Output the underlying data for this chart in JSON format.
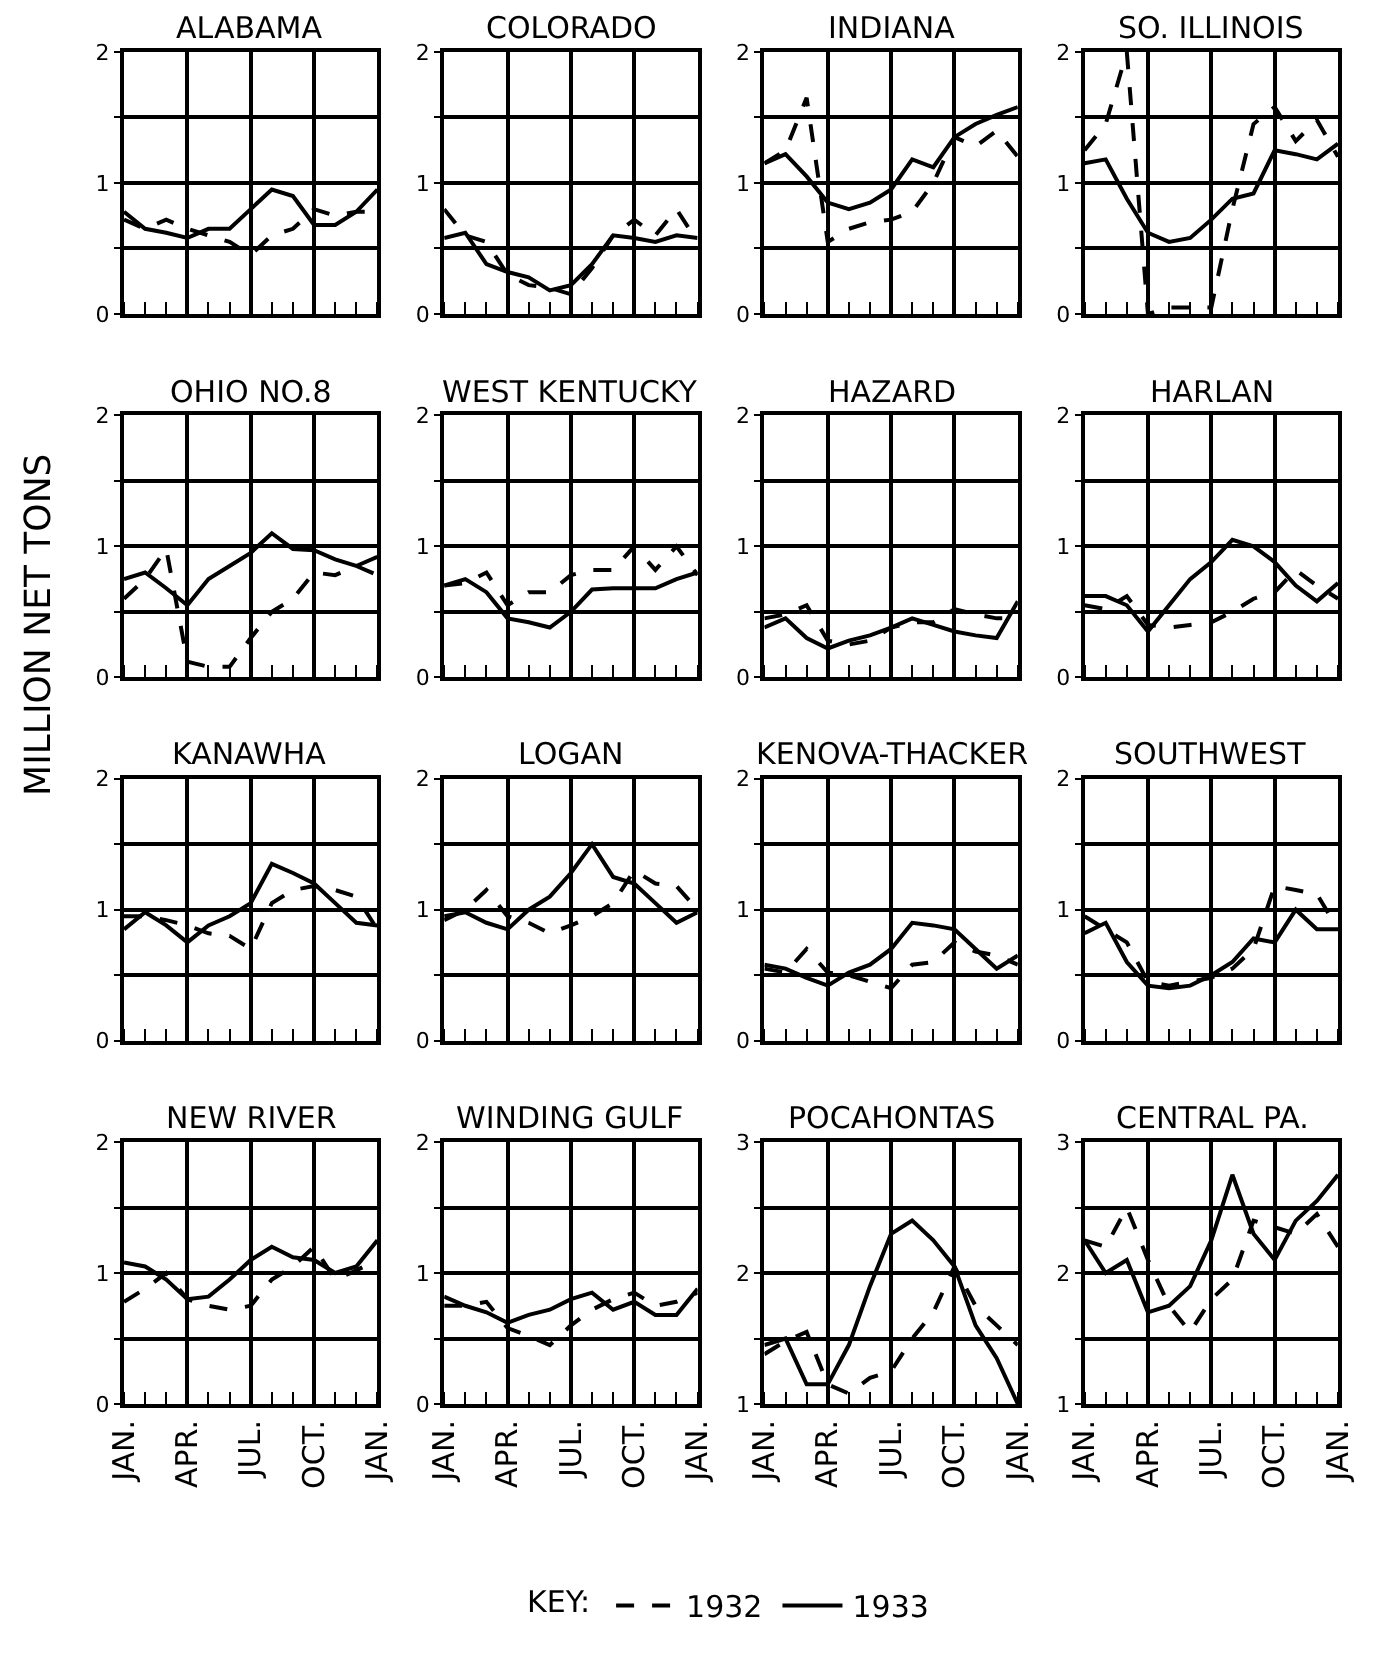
{
  "chart_data": [
    {
      "type": "line",
      "title": "ALABAMA",
      "categories": [
        null,
        null,
        null,
        null,
        null,
        null,
        null,
        null,
        null,
        null,
        null,
        null,
        null
      ],
      "ylim": [
        0,
        2
      ],
      "yticks": [
        0,
        {
          "value": 0.5,
          "label": null
        },
        1,
        {
          "value": 1.5,
          "label": null
        },
        2
      ],
      "grid": true,
      "tick_labels": "y",
      "legend": "bottom",
      "legend_title": "KEY:",
      "series": [
        {
          "name": "1932",
          "color": "#000000",
          "line_style": "dashed",
          "values": [
            0.72,
            0.65,
            0.72,
            0.65,
            0.6,
            0.55,
            0.45,
            0.6,
            0.65,
            0.8,
            0.75,
            0.78,
            0.78
          ]
        },
        {
          "name": "1933",
          "color": "#000000",
          "line_style": "solid",
          "values": [
            0.78,
            0.65,
            0.62,
            0.58,
            0.65,
            0.65,
            0.8,
            0.95,
            0.9,
            0.68,
            0.68,
            0.78,
            0.95
          ]
        }
      ]
    },
    {
      "type": "line",
      "title": "COLORADO",
      "categories": [
        null,
        null,
        null,
        null,
        null,
        null,
        null,
        null,
        null,
        null,
        null,
        null,
        null
      ],
      "ylim": [
        0,
        2
      ],
      "yticks": [
        0,
        {
          "value": 0.5,
          "label": null
        },
        1,
        {
          "value": 1.5,
          "label": null
        },
        2
      ],
      "grid": true,
      "tick_labels": "y",
      "legend": "bottom",
      "series": [
        {
          "name": "1932",
          "color": "#000000",
          "line_style": "dashed",
          "values": [
            0.8,
            0.6,
            0.55,
            0.3,
            0.22,
            0.2,
            0.15,
            0.35,
            0.6,
            0.72,
            0.6,
            0.8,
            0.55
          ]
        },
        {
          "name": "1933",
          "color": "#000000",
          "line_style": "solid",
          "values": [
            0.58,
            0.62,
            0.38,
            0.32,
            0.28,
            0.18,
            0.22,
            0.38,
            0.6,
            0.58,
            0.55,
            0.6,
            0.58
          ]
        }
      ]
    },
    {
      "type": "line",
      "title": "INDIANA",
      "categories": [
        null,
        null,
        null,
        null,
        null,
        null,
        null,
        null,
        null,
        null,
        null,
        null,
        null
      ],
      "ylim": [
        0,
        2
      ],
      "yticks": [
        0,
        {
          "value": 0.5,
          "label": null
        },
        1,
        {
          "value": 1.5,
          "label": null
        },
        2
      ],
      "grid": true,
      "tick_labels": "y",
      "legend": "bottom",
      "series": [
        {
          "name": "1932",
          "color": "#000000",
          "line_style": "dashed",
          "values": [
            1.15,
            1.25,
            1.65,
            0.55,
            0.65,
            0.7,
            0.72,
            0.78,
            1.0,
            1.35,
            1.28,
            1.4,
            1.2
          ]
        },
        {
          "name": "1933",
          "color": "#000000",
          "line_style": "solid",
          "values": [
            1.15,
            1.22,
            1.05,
            0.85,
            0.8,
            0.85,
            0.95,
            1.18,
            1.12,
            1.35,
            1.45,
            1.52,
            1.58
          ]
        }
      ]
    },
    {
      "type": "line",
      "title": "SO. ILLINOIS",
      "categories": [
        null,
        null,
        null,
        null,
        null,
        null,
        null,
        null,
        null,
        null,
        null,
        null,
        null
      ],
      "ylim": [
        0,
        2
      ],
      "yticks": [
        0,
        {
          "value": 0.5,
          "label": null
        },
        1,
        {
          "value": 1.5,
          "label": null
        },
        2
      ],
      "grid": true,
      "tick_labels": "y",
      "legend": "bottom",
      "series": [
        {
          "name": "1932",
          "color": "#000000",
          "line_style": "dashed",
          "values": [
            1.25,
            1.45,
            2.0,
            0.0,
            0.05,
            0.05,
            0.05,
            0.8,
            1.45,
            1.58,
            1.32,
            1.48,
            1.2
          ]
        },
        {
          "name": "1933",
          "color": "#000000",
          "line_style": "solid",
          "values": [
            1.15,
            1.18,
            0.88,
            0.62,
            0.55,
            0.58,
            0.72,
            0.88,
            0.92,
            1.25,
            1.22,
            1.18,
            1.3
          ]
        }
      ]
    },
    {
      "type": "line",
      "title": "OHIO NO.8",
      "ylabel": "MILLION NET TONS",
      "categories": [
        null,
        null,
        null,
        null,
        null,
        null,
        null,
        null,
        null,
        null,
        null,
        null,
        null
      ],
      "ylim": [
        0,
        2
      ],
      "yticks": [
        0,
        {
          "value": 0.5,
          "label": null
        },
        1,
        {
          "value": 1.5,
          "label": null
        },
        2
      ],
      "grid": true,
      "tick_labels": "y",
      "legend": "bottom",
      "series": [
        {
          "name": "1932",
          "color": "#000000",
          "line_style": "dashed",
          "values": [
            0.6,
            0.75,
            0.98,
            0.12,
            0.08,
            0.08,
            0.3,
            0.5,
            0.6,
            0.8,
            0.78,
            0.85,
            0.78
          ]
        },
        {
          "name": "1933",
          "color": "#000000",
          "line_style": "solid",
          "values": [
            0.75,
            0.8,
            0.68,
            0.55,
            0.75,
            0.85,
            0.95,
            1.1,
            0.98,
            0.97,
            0.9,
            0.85,
            0.92
          ]
        }
      ]
    },
    {
      "type": "line",
      "title": "WEST KENTUCKY",
      "categories": [
        null,
        null,
        null,
        null,
        null,
        null,
        null,
        null,
        null,
        null,
        null,
        null,
        null
      ],
      "ylim": [
        0,
        2
      ],
      "yticks": [
        0,
        {
          "value": 0.5,
          "label": null
        },
        1,
        {
          "value": 1.5,
          "label": null
        },
        2
      ],
      "grid": true,
      "tick_labels": "y",
      "legend": "bottom",
      "series": [
        {
          "name": "1932",
          "color": "#000000",
          "line_style": "dashed",
          "values": [
            0.7,
            0.72,
            0.8,
            0.55,
            0.65,
            0.65,
            0.78,
            0.82,
            0.82,
            1.0,
            0.82,
            1.0,
            0.78
          ]
        },
        {
          "name": "1933",
          "color": "#000000",
          "line_style": "solid",
          "values": [
            0.7,
            0.75,
            0.65,
            0.45,
            0.42,
            0.38,
            0.5,
            0.67,
            0.68,
            0.68,
            0.68,
            0.75,
            0.8
          ]
        }
      ]
    },
    {
      "type": "line",
      "title": "HAZARD",
      "categories": [
        null,
        null,
        null,
        null,
        null,
        null,
        null,
        null,
        null,
        null,
        null,
        null,
        null
      ],
      "ylim": [
        0,
        2
      ],
      "yticks": [
        0,
        {
          "value": 0.5,
          "label": null
        },
        1,
        {
          "value": 1.5,
          "label": null
        },
        2
      ],
      "grid": true,
      "tick_labels": "y",
      "legend": "bottom",
      "series": [
        {
          "name": "1932",
          "color": "#000000",
          "line_style": "dashed",
          "values": [
            0.45,
            0.48,
            0.55,
            0.28,
            0.25,
            0.28,
            0.38,
            0.42,
            0.42,
            0.52,
            0.48,
            0.45,
            0.45
          ]
        },
        {
          "name": "1933",
          "color": "#000000",
          "line_style": "solid",
          "values": [
            0.38,
            0.45,
            0.3,
            0.22,
            0.28,
            0.32,
            0.38,
            0.45,
            0.4,
            0.35,
            0.32,
            0.3,
            0.58
          ]
        }
      ]
    },
    {
      "type": "line",
      "title": "HARLAN",
      "categories": [
        null,
        null,
        null,
        null,
        null,
        null,
        null,
        null,
        null,
        null,
        null,
        null,
        null
      ],
      "ylim": [
        0,
        2
      ],
      "yticks": [
        0,
        {
          "value": 0.5,
          "label": null
        },
        1,
        {
          "value": 1.5,
          "label": null
        },
        2
      ],
      "grid": true,
      "tick_labels": "y",
      "legend": "bottom",
      "series": [
        {
          "name": "1932",
          "color": "#000000",
          "line_style": "dashed",
          "values": [
            0.55,
            0.52,
            0.62,
            0.4,
            0.38,
            0.4,
            0.42,
            0.5,
            0.6,
            0.65,
            0.82,
            0.7,
            0.6
          ]
        },
        {
          "name": "1933",
          "color": "#000000",
          "line_style": "solid",
          "values": [
            0.62,
            0.62,
            0.55,
            0.35,
            0.55,
            0.75,
            0.88,
            1.05,
            1.0,
            0.88,
            0.7,
            0.58,
            0.72
          ]
        }
      ]
    },
    {
      "type": "line",
      "title": "KANAWHA",
      "categories": [
        null,
        null,
        null,
        null,
        null,
        null,
        null,
        null,
        null,
        null,
        null,
        null,
        null
      ],
      "ylim": [
        0,
        2
      ],
      "yticks": [
        0,
        {
          "value": 0.5,
          "label": null
        },
        1,
        {
          "value": 1.5,
          "label": null
        },
        2
      ],
      "grid": true,
      "tick_labels": "y",
      "legend": "bottom",
      "series": [
        {
          "name": "1932",
          "color": "#000000",
          "line_style": "dashed",
          "values": [
            0.95,
            0.95,
            0.92,
            0.88,
            0.82,
            0.8,
            0.7,
            1.05,
            1.15,
            1.18,
            1.15,
            1.1,
            0.85
          ]
        },
        {
          "name": "1933",
          "color": "#000000",
          "line_style": "solid",
          "values": [
            0.85,
            0.98,
            0.88,
            0.75,
            0.88,
            0.95,
            1.05,
            1.35,
            1.28,
            1.2,
            1.05,
            0.9,
            0.88
          ]
        }
      ]
    },
    {
      "type": "line",
      "title": "LOGAN",
      "categories": [
        null,
        null,
        null,
        null,
        null,
        null,
        null,
        null,
        null,
        null,
        null,
        null,
        null
      ],
      "ylim": [
        0,
        2
      ],
      "yticks": [
        0,
        {
          "value": 0.5,
          "label": null
        },
        1,
        {
          "value": 1.5,
          "label": null
        },
        2
      ],
      "grid": true,
      "tick_labels": "y",
      "legend": "bottom",
      "series": [
        {
          "name": "1932",
          "color": "#000000",
          "line_style": "dashed",
          "values": [
            0.92,
            1.0,
            1.15,
            0.95,
            0.9,
            0.82,
            0.88,
            0.95,
            1.05,
            1.3,
            1.2,
            1.18,
            1.0
          ]
        },
        {
          "name": "1933",
          "color": "#000000",
          "line_style": "solid",
          "values": [
            0.95,
            0.98,
            0.9,
            0.85,
            1.0,
            1.1,
            1.28,
            1.5,
            1.25,
            1.2,
            1.05,
            0.9,
            0.98
          ]
        }
      ]
    },
    {
      "type": "line",
      "title": "KENOVA-THACKER",
      "categories": [
        null,
        null,
        null,
        null,
        null,
        null,
        null,
        null,
        null,
        null,
        null,
        null,
        null
      ],
      "ylim": [
        0,
        2
      ],
      "yticks": [
        0,
        {
          "value": 0.5,
          "label": null
        },
        1,
        {
          "value": 1.5,
          "label": null
        },
        2
      ],
      "grid": true,
      "tick_labels": "y",
      "legend": "bottom",
      "series": [
        {
          "name": "1932",
          "color": "#000000",
          "line_style": "dashed",
          "values": [
            0.55,
            0.52,
            0.7,
            0.52,
            0.5,
            0.45,
            0.4,
            0.58,
            0.6,
            0.75,
            0.68,
            0.65,
            0.58
          ]
        },
        {
          "name": "1933",
          "color": "#000000",
          "line_style": "solid",
          "values": [
            0.58,
            0.55,
            0.48,
            0.42,
            0.52,
            0.58,
            0.7,
            0.9,
            0.88,
            0.85,
            0.7,
            0.55,
            0.65
          ]
        }
      ]
    },
    {
      "type": "line",
      "title": "SOUTHWEST",
      "categories": [
        null,
        null,
        null,
        null,
        null,
        null,
        null,
        null,
        null,
        null,
        null,
        null,
        null
      ],
      "ylim": [
        0,
        2
      ],
      "yticks": [
        0,
        {
          "value": 0.5,
          "label": null
        },
        1,
        {
          "value": 1.5,
          "label": null
        },
        2
      ],
      "grid": true,
      "tick_labels": "y",
      "legend": "bottom",
      "series": [
        {
          "name": "1932",
          "color": "#000000",
          "line_style": "dashed",
          "values": [
            0.95,
            0.85,
            0.75,
            0.45,
            0.42,
            0.45,
            0.48,
            0.55,
            0.7,
            1.18,
            1.15,
            1.12,
            0.85
          ]
        },
        {
          "name": "1933",
          "color": "#000000",
          "line_style": "solid",
          "values": [
            0.82,
            0.9,
            0.6,
            0.42,
            0.4,
            0.42,
            0.5,
            0.6,
            0.78,
            0.75,
            1.0,
            0.85,
            0.85
          ]
        }
      ]
    },
    {
      "type": "line",
      "title": "NEW RIVER",
      "categories": [
        "JAN.",
        null,
        null,
        "APR.",
        null,
        null,
        "JUL.",
        null,
        null,
        "OCT.",
        null,
        null,
        "JAN."
      ],
      "ylim": [
        0,
        2
      ],
      "yticks": [
        0,
        {
          "value": 0.5,
          "label": null
        },
        1,
        {
          "value": 1.5,
          "label": null
        },
        2
      ],
      "grid": true,
      "legend": "bottom",
      "series": [
        {
          "name": "1932",
          "color": "#000000",
          "line_style": "dashed",
          "values": [
            0.78,
            0.88,
            1.0,
            0.8,
            0.75,
            0.72,
            0.75,
            0.95,
            1.05,
            1.2,
            0.95,
            1.02,
            1.1
          ]
        },
        {
          "name": "1933",
          "color": "#000000",
          "line_style": "solid",
          "values": [
            1.08,
            1.05,
            0.95,
            0.8,
            0.82,
            0.95,
            1.1,
            1.2,
            1.12,
            1.1,
            1.0,
            1.05,
            1.25
          ]
        }
      ]
    },
    {
      "type": "line",
      "title": "WINDING GULF",
      "categories": [
        "JAN.",
        null,
        null,
        "APR.",
        null,
        null,
        "JUL.",
        null,
        null,
        "OCT.",
        null,
        null,
        "JAN."
      ],
      "ylim": [
        0,
        2
      ],
      "yticks": [
        0,
        {
          "value": 0.5,
          "label": null
        },
        1,
        {
          "value": 1.5,
          "label": null
        },
        2
      ],
      "grid": true,
      "legend": "bottom",
      "series": [
        {
          "name": "1932",
          "color": "#000000",
          "line_style": "dashed",
          "values": [
            0.75,
            0.75,
            0.78,
            0.58,
            0.52,
            0.45,
            0.6,
            0.72,
            0.8,
            0.85,
            0.75,
            0.78,
            0.85
          ]
        },
        {
          "name": "1933",
          "color": "#000000",
          "line_style": "solid",
          "values": [
            0.82,
            0.75,
            0.7,
            0.62,
            0.68,
            0.72,
            0.8,
            0.85,
            0.72,
            0.78,
            0.68,
            0.68,
            0.88
          ]
        }
      ]
    },
    {
      "type": "line",
      "title": "POCAHONTAS",
      "categories": [
        "JAN.",
        null,
        null,
        "APR.",
        null,
        null,
        "JUL.",
        null,
        null,
        "OCT.",
        null,
        null,
        "JAN."
      ],
      "ylim": [
        1,
        3
      ],
      "yticks": [
        1,
        {
          "value": 1.5,
          "label": null
        },
        2,
        {
          "value": 2.5,
          "label": null
        },
        3
      ],
      "grid": true,
      "legend": "bottom",
      "series": [
        {
          "name": "1932",
          "color": "#000000",
          "line_style": "dashed",
          "values": [
            1.38,
            1.48,
            1.55,
            1.15,
            1.08,
            1.2,
            1.25,
            1.5,
            1.7,
            2.05,
            1.75,
            1.6,
            1.45
          ]
        },
        {
          "name": "1933",
          "color": "#000000",
          "line_style": "solid",
          "values": [
            1.45,
            1.5,
            1.15,
            1.15,
            1.45,
            1.9,
            2.3,
            2.4,
            2.25,
            2.05,
            1.6,
            1.35,
            1.0
          ]
        }
      ]
    },
    {
      "type": "line",
      "title": "CENTRAL PA.",
      "categories": [
        "JAN.",
        null,
        null,
        "APR.",
        null,
        null,
        "JUL.",
        null,
        null,
        "OCT.",
        null,
        null,
        "JAN."
      ],
      "ylim": [
        1,
        3
      ],
      "yticks": [
        1,
        {
          "value": 1.5,
          "label": null
        },
        2,
        {
          "value": 2.5,
          "label": null
        },
        3
      ],
      "grid": true,
      "legend": "bottom",
      "series": [
        {
          "name": "1932",
          "color": "#000000",
          "line_style": "dashed",
          "values": [
            2.25,
            2.2,
            2.5,
            2.1,
            1.75,
            1.55,
            1.8,
            1.95,
            2.4,
            2.35,
            2.3,
            2.45,
            2.2
          ]
        },
        {
          "name": "1933",
          "color": "#000000",
          "line_style": "solid",
          "values": [
            2.25,
            2.0,
            2.1,
            1.7,
            1.75,
            1.9,
            2.25,
            2.75,
            2.3,
            2.1,
            2.4,
            2.55,
            2.75
          ]
        }
      ]
    }
  ]
}
